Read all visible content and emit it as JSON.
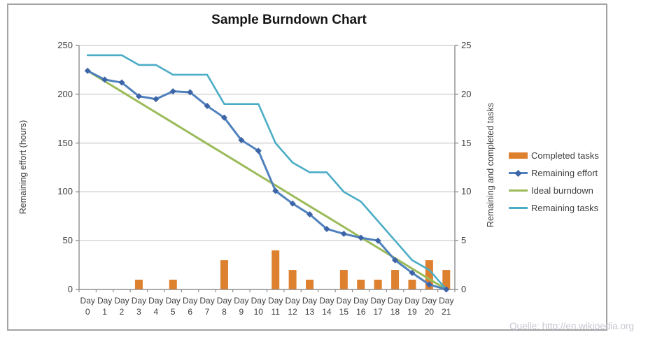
{
  "chart_data": {
    "type": "combo-bar-line",
    "title": "Sample Burndown Chart",
    "x_prefix": "Day",
    "x_values": [
      0,
      1,
      2,
      3,
      4,
      5,
      6,
      7,
      8,
      9,
      10,
      11,
      12,
      13,
      14,
      15,
      16,
      17,
      18,
      19,
      20,
      21
    ],
    "left_axis": {
      "title": "Remaining effort (hours)",
      "min": 0,
      "max": 250,
      "step": 50,
      "ticks": [
        "250",
        "200",
        "150",
        "100",
        "50",
        "0"
      ]
    },
    "right_axis": {
      "title": "Remaining and completed tasks",
      "min": 0,
      "max": 25,
      "step": 5,
      "ticks": [
        "25",
        "20",
        "15",
        "10",
        "5",
        "0"
      ]
    },
    "grid": true,
    "legend_position": "right",
    "legend": {
      "items": [
        {
          "label": "Completed tasks"
        },
        {
          "label": "Remaining effort"
        },
        {
          "label": "Ideal burndown"
        },
        {
          "label": "Remaining tasks"
        }
      ]
    },
    "series": [
      {
        "name": "Completed tasks",
        "type": "bar",
        "axis": "right",
        "color": "#DE812F",
        "values": [
          0,
          0,
          0,
          1,
          0,
          1,
          0,
          0,
          3,
          0,
          0,
          4,
          2,
          1,
          0,
          2,
          1,
          1,
          2,
          1,
          3,
          2
        ]
      },
      {
        "name": "Remaining effort",
        "type": "line",
        "axis": "left",
        "color": "#4F81BD",
        "marker": "diamond",
        "marker_color": "#3D64A6",
        "values": [
          224,
          215,
          212,
          198,
          195,
          203,
          202,
          188,
          176,
          153,
          142,
          101,
          88,
          77,
          62,
          57,
          53,
          50,
          30,
          17,
          5,
          0
        ]
      },
      {
        "name": "Ideal burndown",
        "type": "line",
        "axis": "left",
        "color": "#9BBB59",
        "values": [
          224,
          213.3,
          202.7,
          192,
          181.3,
          170.7,
          160,
          149.3,
          138.7,
          128,
          117.3,
          106.7,
          96,
          85.3,
          74.7,
          64,
          53.3,
          42.7,
          32,
          21.3,
          10.7,
          0
        ]
      },
      {
        "name": "Remaining tasks",
        "type": "line",
        "axis": "right",
        "color": "#4BACC6",
        "values": [
          24,
          24,
          24,
          23,
          23,
          22,
          22,
          22,
          19,
          19,
          19,
          15,
          13,
          12,
          12,
          10,
          9,
          7,
          5,
          3,
          2,
          0
        ]
      }
    ],
    "source": "Quelle: http://en.wikipedia.org"
  },
  "colors": {
    "grid": "#c9c9c9",
    "axis": "#8f8f8f",
    "text": "#3f3f3f",
    "frame_border": "#a3a3a3",
    "source_text": "#c6c7d3"
  }
}
